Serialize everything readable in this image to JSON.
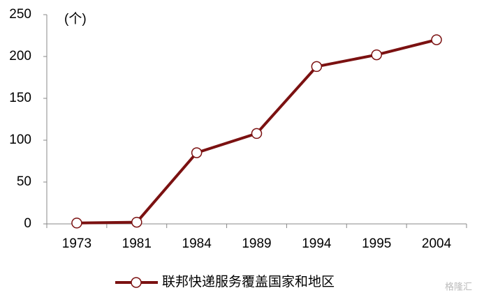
{
  "chart_data": {
    "type": "line",
    "unit_label": "(个)",
    "categories": [
      "1973",
      "1981",
      "1984",
      "1989",
      "1994",
      "1995",
      "2004"
    ],
    "series": [
      {
        "name": "联邦快递服务覆盖国家和地区",
        "color": "#7b1111",
        "values": [
          1,
          2,
          85,
          108,
          188,
          202,
          220
        ]
      }
    ],
    "ylim": [
      0,
      250
    ],
    "yticks": [
      0,
      50,
      100,
      150,
      200,
      250
    ],
    "grid": false,
    "legend": "bottom",
    "watermark": "格隆汇"
  }
}
